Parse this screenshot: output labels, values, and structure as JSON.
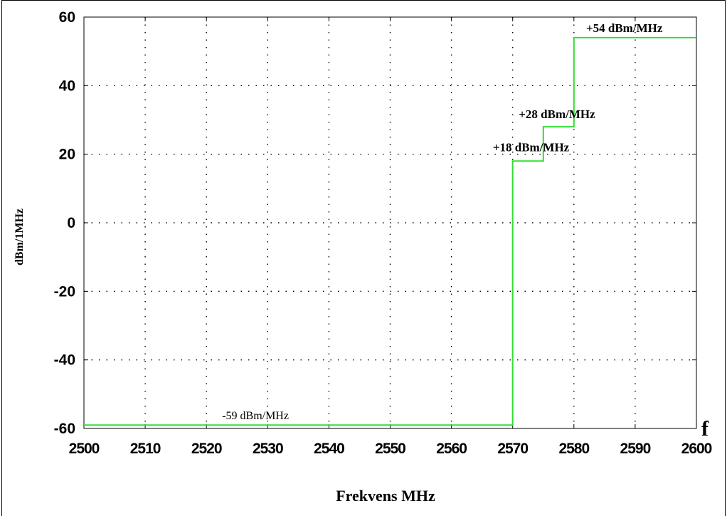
{
  "chart_data": {
    "type": "line",
    "title": "",
    "xlabel": "Frekvens MHz",
    "ylabel": "dBm/1MHz",
    "x_axis_marker": "f",
    "xlim": [
      2500,
      2600
    ],
    "ylim": [
      -60,
      60
    ],
    "x_ticks": [
      2500,
      2510,
      2520,
      2530,
      2540,
      2550,
      2560,
      2570,
      2580,
      2590,
      2600
    ],
    "y_ticks": [
      60,
      40,
      20,
      0,
      -20,
      -40,
      -60
    ],
    "grid": true,
    "grid_style": "dotted",
    "series": [
      {
        "color": "#33dd33",
        "step": true,
        "x": [
          2500,
          2570,
          2570,
          2575,
          2575,
          2580,
          2580,
          2600
        ],
        "y": [
          -59,
          -59,
          18,
          18,
          28,
          28,
          54,
          54
        ]
      }
    ],
    "annotations": [
      {
        "text": "-59 dBm/MHz",
        "x": 2528,
        "y": -59
      },
      {
        "text": "+18 dBm/MHz",
        "x": 2573,
        "y": 18
      },
      {
        "text": "+28 dBm/MHz",
        "x": 2577,
        "y": 28
      },
      {
        "text": "+54 dBm/MHz",
        "x": 2588,
        "y": 54
      }
    ]
  }
}
